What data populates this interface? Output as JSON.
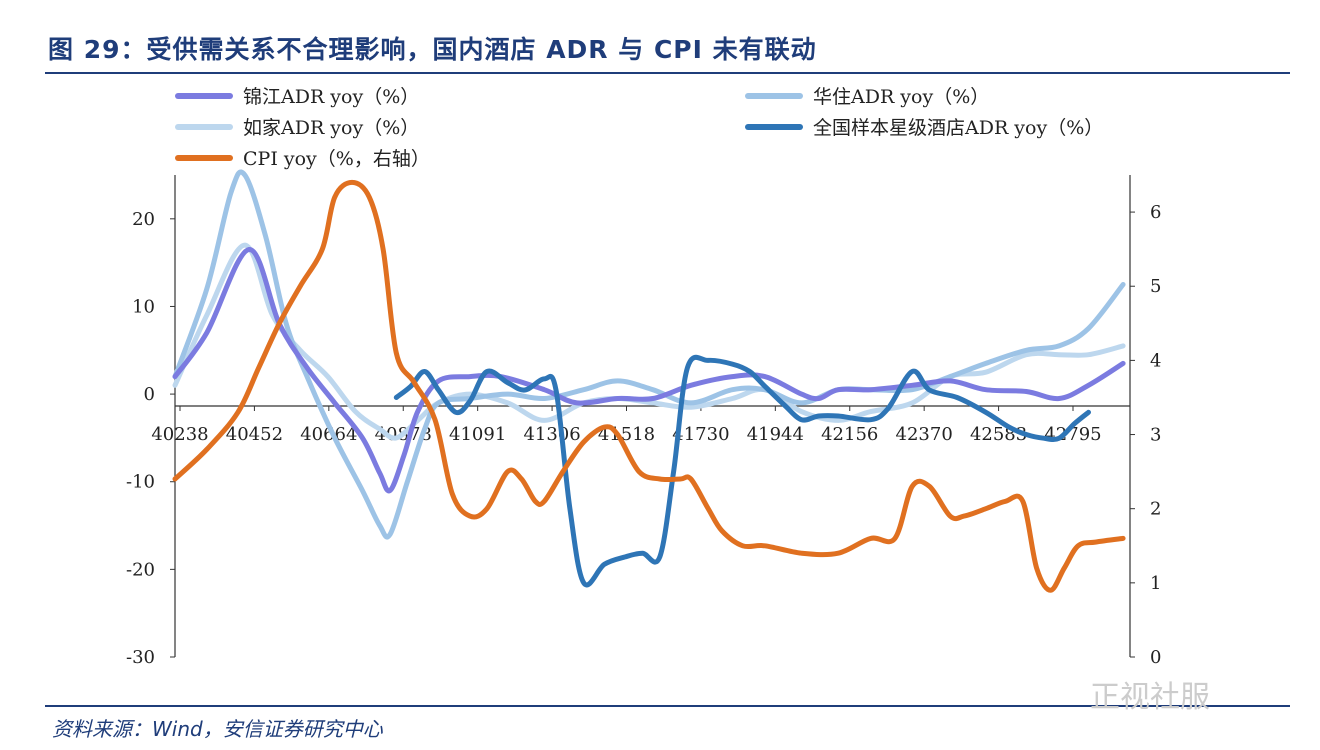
{
  "title": "图 29：受供需关系不合理影响，国内酒店 ADR 与 CPI 未有联动",
  "source": "资料来源：Wind，安信证券研究中心",
  "watermark": "正视社服",
  "chart_data": {
    "type": "line",
    "x_tick_labels": [
      "40238",
      "40452",
      "40664",
      "40878",
      "41091",
      "41306",
      "41518",
      "41730",
      "41944",
      "42156",
      "42370",
      "42583",
      "42795"
    ],
    "y_left_ticks": [
      "20",
      "10",
      "0",
      "-10",
      "-20",
      "-30"
    ],
    "y_left_range": [
      -30,
      25
    ],
    "y_right_ticks": [
      "6",
      "5",
      "4",
      "3",
      "2",
      "1",
      "0"
    ],
    "y_right_range": [
      0,
      6.5
    ],
    "x_range": [
      40238,
      43000
    ],
    "legend": [
      {
        "label": "锦江ADR yoy（%）",
        "color": "#7b7be0"
      },
      {
        "label": "华住ADR yoy（%）",
        "color": "#9dc3e6"
      },
      {
        "label": "如家ADR yoy（%）",
        "color": "#bdd7ee"
      },
      {
        "label": "全国样本星级酒店ADR yoy（%）",
        "color": "#2e75b6"
      },
      {
        "label": "CPI yoy（%，右轴）",
        "color": "#e07020"
      }
    ],
    "series": [
      {
        "name": "锦江ADR yoy（%）",
        "axis": "left",
        "color": "#7b7be0",
        "width": 5,
        "points": [
          [
            40238,
            2
          ],
          [
            40330,
            7
          ],
          [
            40452,
            16.5
          ],
          [
            40540,
            8
          ],
          [
            40620,
            3
          ],
          [
            40700,
            -1
          ],
          [
            40780,
            -5
          ],
          [
            40830,
            -9
          ],
          [
            40860,
            -11
          ],
          [
            40900,
            -7
          ],
          [
            40940,
            -2
          ],
          [
            41000,
            1.5
          ],
          [
            41091,
            2
          ],
          [
            41180,
            2
          ],
          [
            41306,
            0.5
          ],
          [
            41400,
            -1
          ],
          [
            41518,
            -0.5
          ],
          [
            41620,
            -0.5
          ],
          [
            41730,
            1
          ],
          [
            41850,
            2
          ],
          [
            41944,
            2
          ],
          [
            42050,
            0
          ],
          [
            42100,
            -0.5
          ],
          [
            42156,
            0.5
          ],
          [
            42250,
            0.5
          ],
          [
            42370,
            1
          ],
          [
            42480,
            1.5
          ],
          [
            42583,
            0.5
          ],
          [
            42700,
            0.3
          ],
          [
            42795,
            -0.5
          ],
          [
            42880,
            1
          ],
          [
            42980,
            3.5
          ]
        ]
      },
      {
        "name": "华住ADR yoy（%）",
        "axis": "left",
        "color": "#9dc3e6",
        "width": 5,
        "points": [
          [
            40238,
            2
          ],
          [
            40330,
            12
          ],
          [
            40400,
            23
          ],
          [
            40440,
            25
          ],
          [
            40500,
            18
          ],
          [
            40560,
            8
          ],
          [
            40620,
            2
          ],
          [
            40700,
            -5
          ],
          [
            40780,
            -11
          ],
          [
            40830,
            -15
          ],
          [
            40860,
            -16
          ],
          [
            40910,
            -10
          ],
          [
            40960,
            -4
          ],
          [
            41000,
            -1
          ],
          [
            41091,
            -0.5
          ],
          [
            41200,
            0
          ],
          [
            41306,
            -0.5
          ],
          [
            41420,
            0.5
          ],
          [
            41518,
            1.5
          ],
          [
            41620,
            0.5
          ],
          [
            41730,
            -1
          ],
          [
            41850,
            0.5
          ],
          [
            41944,
            0.5
          ],
          [
            42050,
            -1
          ],
          [
            42156,
            0.5
          ],
          [
            42250,
            0.5
          ],
          [
            42370,
            0.5
          ],
          [
            42480,
            2
          ],
          [
            42583,
            3.5
          ],
          [
            42700,
            5
          ],
          [
            42795,
            5.5
          ],
          [
            42880,
            7.5
          ],
          [
            42980,
            12.5
          ]
        ]
      },
      {
        "name": "如家ADR yoy（%）",
        "axis": "left",
        "color": "#bdd7ee",
        "width": 5,
        "points": [
          [
            40238,
            1
          ],
          [
            40330,
            9
          ],
          [
            40440,
            17
          ],
          [
            40520,
            9
          ],
          [
            40600,
            5
          ],
          [
            40680,
            2
          ],
          [
            40760,
            -2
          ],
          [
            40830,
            -4
          ],
          [
            40878,
            -5
          ],
          [
            40940,
            -3
          ],
          [
            41000,
            -1
          ],
          [
            41091,
            0
          ],
          [
            41200,
            -1
          ],
          [
            41306,
            -3
          ],
          [
            41420,
            -1
          ],
          [
            41518,
            -0.5
          ],
          [
            41620,
            -1
          ],
          [
            41730,
            -1.5
          ],
          [
            41850,
            -0.5
          ],
          [
            41944,
            0.5
          ],
          [
            42050,
            -2
          ],
          [
            42156,
            -3
          ],
          [
            42250,
            -2
          ],
          [
            42370,
            -1
          ],
          [
            42480,
            2
          ],
          [
            42583,
            2.5
          ],
          [
            42700,
            4.5
          ],
          [
            42795,
            4.5
          ],
          [
            42880,
            4.5
          ],
          [
            42980,
            5.5
          ]
        ]
      },
      {
        "name": "全国样本星级酒店ADR yoy（%）",
        "axis": "right",
        "color": "#2e75b6",
        "width": 5,
        "points": [
          [
            40878,
            3.5
          ],
          [
            40920,
            3.65
          ],
          [
            40960,
            3.85
          ],
          [
            41000,
            3.6
          ],
          [
            41050,
            3.3
          ],
          [
            41091,
            3.45
          ],
          [
            41140,
            3.85
          ],
          [
            41200,
            3.7
          ],
          [
            41250,
            3.6
          ],
          [
            41306,
            3.75
          ],
          [
            41340,
            3.6
          ],
          [
            41380,
            2.0
          ],
          [
            41420,
            1.0
          ],
          [
            41480,
            1.25
          ],
          [
            41540,
            1.35
          ],
          [
            41590,
            1.4
          ],
          [
            41640,
            1.35
          ],
          [
            41680,
            2.5
          ],
          [
            41720,
            3.9
          ],
          [
            41780,
            4.0
          ],
          [
            41850,
            3.95
          ],
          [
            41900,
            3.85
          ],
          [
            41944,
            3.65
          ],
          [
            42000,
            3.4
          ],
          [
            42050,
            3.2
          ],
          [
            42100,
            3.25
          ],
          [
            42156,
            3.25
          ],
          [
            42250,
            3.2
          ],
          [
            42300,
            3.35
          ],
          [
            42370,
            3.85
          ],
          [
            42420,
            3.6
          ],
          [
            42500,
            3.5
          ],
          [
            42583,
            3.3
          ],
          [
            42650,
            3.1
          ],
          [
            42700,
            3.0
          ],
          [
            42750,
            2.95
          ],
          [
            42795,
            2.95
          ],
          [
            42840,
            3.15
          ],
          [
            42880,
            3.3
          ]
        ]
      },
      {
        "name": "CPI yoy（%，右轴）",
        "axis": "right",
        "color": "#e07020",
        "width": 5,
        "points": [
          [
            40238,
            2.4
          ],
          [
            40330,
            2.8
          ],
          [
            40420,
            3.3
          ],
          [
            40480,
            3.9
          ],
          [
            40540,
            4.5
          ],
          [
            40600,
            5.0
          ],
          [
            40664,
            5.5
          ],
          [
            40700,
            6.2
          ],
          [
            40750,
            6.4
          ],
          [
            40800,
            6.2
          ],
          [
            40840,
            5.5
          ],
          [
            40878,
            4.1
          ],
          [
            40930,
            3.7
          ],
          [
            40990,
            3.2
          ],
          [
            41040,
            2.2
          ],
          [
            41091,
            1.9
          ],
          [
            41140,
            2.0
          ],
          [
            41200,
            2.5
          ],
          [
            41240,
            2.4
          ],
          [
            41280,
            2.1
          ],
          [
            41306,
            2.1
          ],
          [
            41360,
            2.5
          ],
          [
            41420,
            2.9
          ],
          [
            41480,
            3.1
          ],
          [
            41518,
            3.0
          ],
          [
            41580,
            2.5
          ],
          [
            41640,
            2.4
          ],
          [
            41700,
            2.4
          ],
          [
            41730,
            2.4
          ],
          [
            41780,
            2.0
          ],
          [
            41820,
            1.7
          ],
          [
            41880,
            1.5
          ],
          [
            41944,
            1.5
          ],
          [
            42050,
            1.4
          ],
          [
            42156,
            1.4
          ],
          [
            42250,
            1.6
          ],
          [
            42320,
            1.6
          ],
          [
            42370,
            2.3
          ],
          [
            42420,
            2.3
          ],
          [
            42480,
            1.9
          ],
          [
            42520,
            1.9
          ],
          [
            42583,
            2.0
          ],
          [
            42640,
            2.1
          ],
          [
            42690,
            2.1
          ],
          [
            42730,
            1.2
          ],
          [
            42770,
            0.9
          ],
          [
            42810,
            1.2
          ],
          [
            42850,
            1.5
          ],
          [
            42900,
            1.55
          ],
          [
            42980,
            1.6
          ]
        ]
      }
    ]
  }
}
